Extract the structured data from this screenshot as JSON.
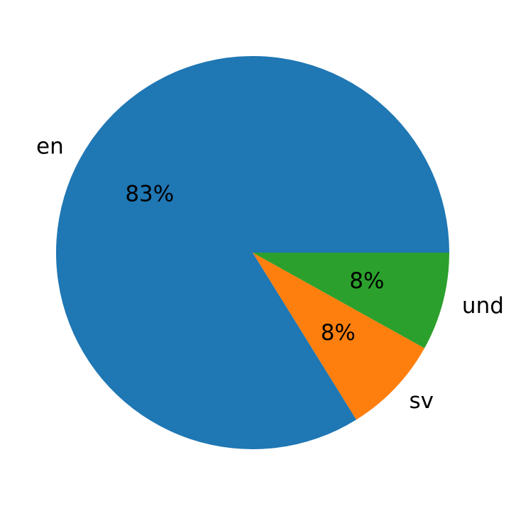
{
  "chart_data": {
    "type": "pie",
    "categories": [
      "en",
      "sv",
      "und"
    ],
    "values": [
      83,
      8,
      8
    ],
    "value_labels": [
      "83%",
      "8%",
      "8%"
    ],
    "colors": [
      "#1f77b4",
      "#ff7f0e",
      "#2ca02c"
    ],
    "start_angle": 0,
    "counterclock": true
  }
}
